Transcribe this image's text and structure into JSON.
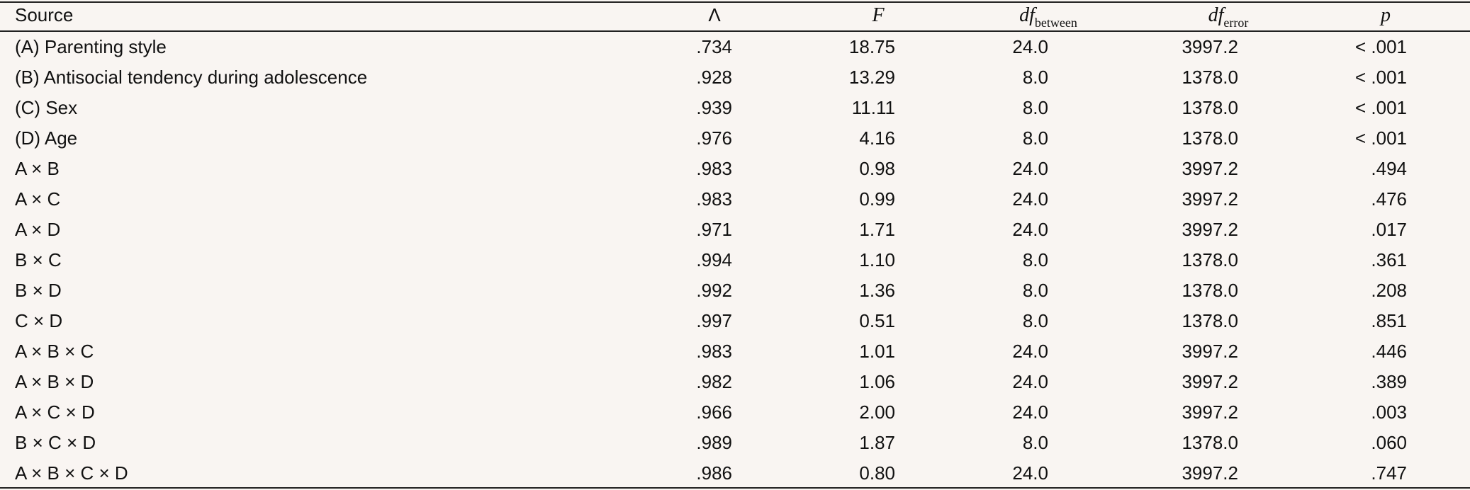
{
  "table": {
    "header": [
      {
        "text": "Source"
      },
      {
        "text": "Λ"
      },
      {
        "text": "F"
      },
      {
        "text": "df",
        "sub": "between"
      },
      {
        "text": "df",
        "sub": "error"
      },
      {
        "text": "p"
      }
    ],
    "rows": [
      [
        "(A) Parenting style",
        ".734",
        "18.75",
        "24.0",
        "3997.2",
        "< .001"
      ],
      [
        "(B) Antisocial tendency during adolescence",
        ".928",
        "13.29",
        "8.0",
        "1378.0",
        "< .001"
      ],
      [
        "(C) Sex",
        ".939",
        "11.11",
        "8.0",
        "1378.0",
        "< .001"
      ],
      [
        "(D) Age",
        ".976",
        "4.16",
        "8.0",
        "1378.0",
        "< .001"
      ],
      [
        "A × B",
        ".983",
        "0.98",
        "24.0",
        "3997.2",
        ".494"
      ],
      [
        "A × C",
        ".983",
        "0.99",
        "24.0",
        "3997.2",
        ".476"
      ],
      [
        "A × D",
        ".971",
        "1.71",
        "24.0",
        "3997.2",
        ".017"
      ],
      [
        "B × C",
        ".994",
        "1.10",
        "8.0",
        "1378.0",
        ".361"
      ],
      [
        "B × D",
        ".992",
        "1.36",
        "8.0",
        "1378.0",
        ".208"
      ],
      [
        "C × D",
        ".997",
        "0.51",
        "8.0",
        "1378.0",
        ".851"
      ],
      [
        "A × B × C",
        ".983",
        "1.01",
        "24.0",
        "3997.2",
        ".446"
      ],
      [
        "A × B × D",
        ".982",
        "1.06",
        "24.0",
        "3997.2",
        ".389"
      ],
      [
        "A × C × D",
        ".966",
        "2.00",
        "24.0",
        "3997.2",
        ".003"
      ],
      [
        "B × C × D",
        ".989",
        "1.87",
        "8.0",
        "1378.0",
        ".060"
      ],
      [
        "A × B × C × D",
        ".986",
        "0.80",
        "24.0",
        "3997.2",
        ".747"
      ]
    ]
  }
}
